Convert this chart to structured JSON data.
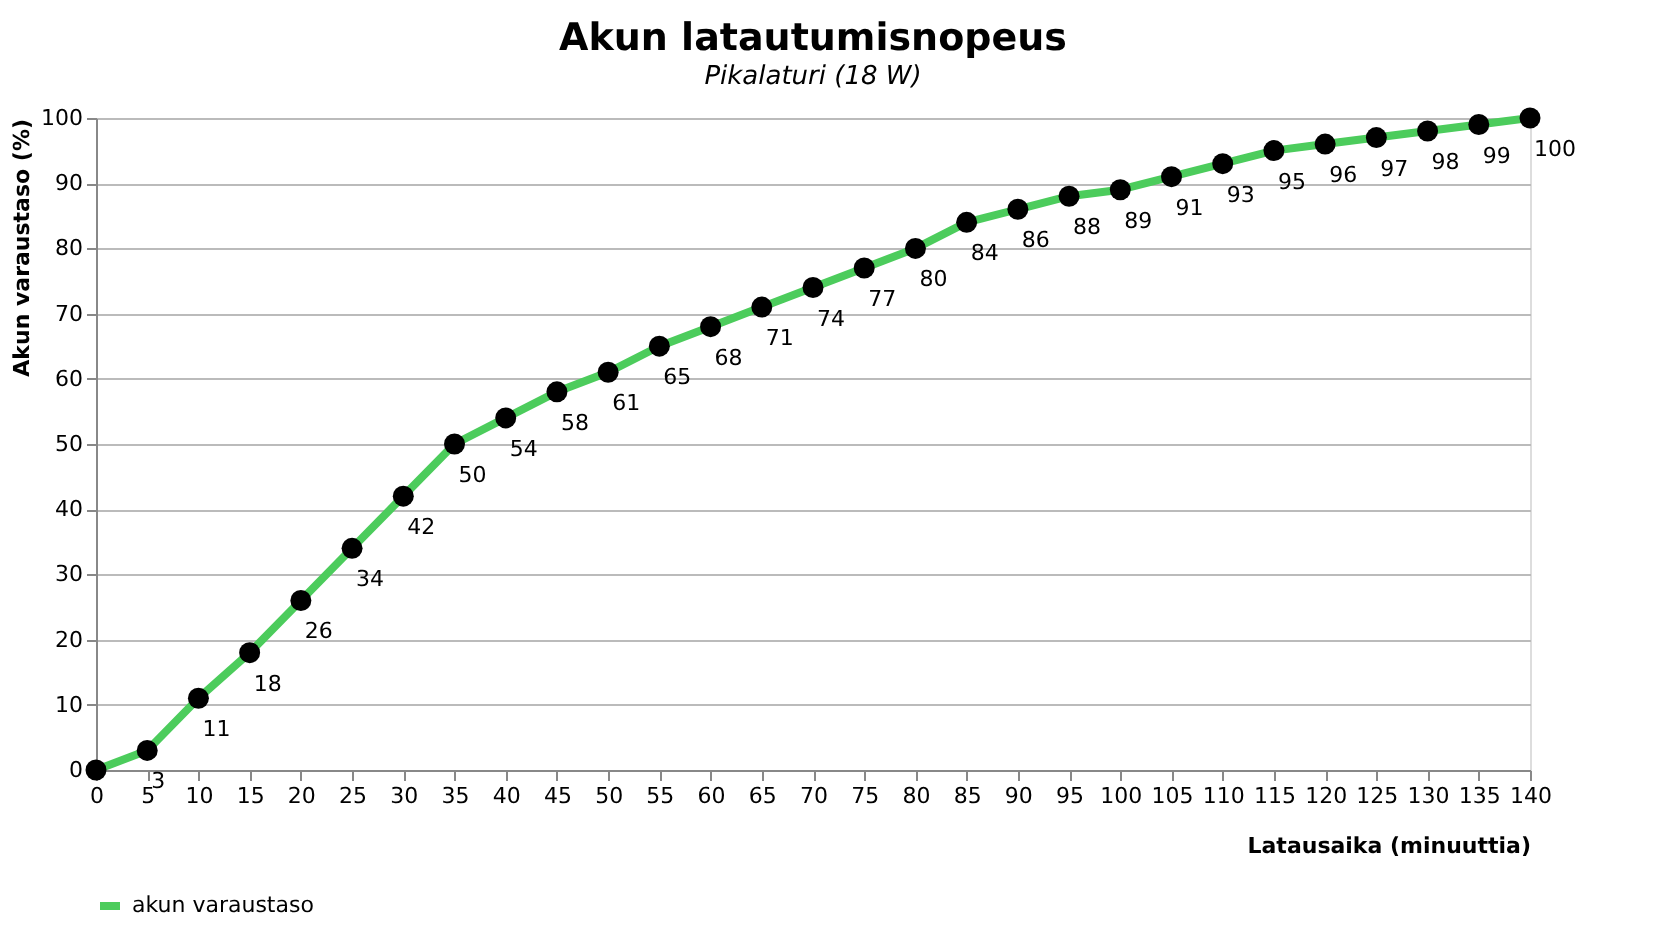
{
  "chart_data": {
    "type": "line",
    "title": "Akun latautumisnopeus",
    "subtitle": "Pikalaturi (18 W)",
    "xlabel": "Latausaika  (minuuttia)",
    "ylabel": "Akun varaustaso  (%)",
    "x": [
      0,
      5,
      10,
      15,
      20,
      25,
      30,
      35,
      40,
      45,
      50,
      55,
      60,
      65,
      70,
      75,
      80,
      85,
      90,
      95,
      100,
      105,
      110,
      115,
      120,
      125,
      130,
      135,
      140
    ],
    "series": [
      {
        "name": "akun varaustaso",
        "color": "#4ccc5c",
        "values": [
          0,
          3,
          11,
          18,
          26,
          34,
          42,
          50,
          54,
          58,
          61,
          65,
          68,
          71,
          74,
          77,
          80,
          84,
          86,
          88,
          89,
          91,
          93,
          95,
          96,
          97,
          98,
          99,
          100
        ]
      }
    ],
    "xlim": [
      0,
      140
    ],
    "xticks": [
      0,
      5,
      10,
      15,
      20,
      25,
      30,
      35,
      40,
      45,
      50,
      55,
      60,
      65,
      70,
      75,
      80,
      85,
      90,
      95,
      100,
      105,
      110,
      115,
      120,
      125,
      130,
      135,
      140
    ],
    "ylim": [
      0,
      100
    ],
    "yticks": [
      0,
      10,
      20,
      30,
      40,
      50,
      60,
      70,
      80,
      90,
      100
    ],
    "value_labels": [
      null,
      "3",
      "11",
      "18",
      "26",
      "34",
      "42",
      "50",
      "54",
      "58",
      "61",
      "65",
      "68",
      "71",
      "74",
      "77",
      "80",
      "84",
      "86",
      "88",
      "89",
      "91",
      "93",
      "95",
      "96",
      "97",
      "98",
      "99",
      "100"
    ],
    "grid": "y",
    "legend": "bottom",
    "marker": "circle",
    "line_style": "solid"
  }
}
